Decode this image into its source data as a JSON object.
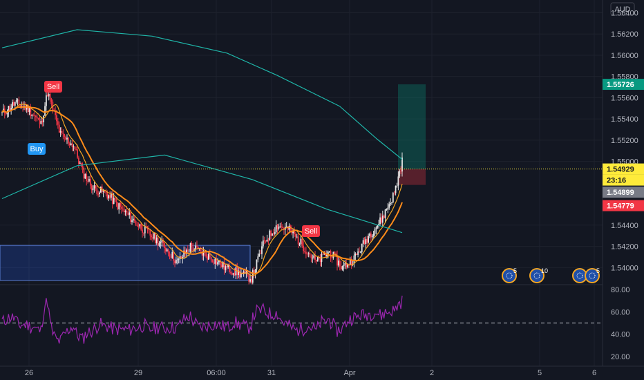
{
  "currency": "AUD",
  "colors": {
    "background": "#131722",
    "grid": "#1e222d",
    "up": "#e6e6e6",
    "down": "#f23645",
    "ma_fast": "#f5a623",
    "ma_slow": "#ff8c1a",
    "ma_long": "#1fb5a8",
    "rsi": "#9c27b0",
    "box": "#2962ff",
    "target": "#089981",
    "stop": "#f23645",
    "current": "#ffeb3b",
    "buy": "#2196f3",
    "sell": "#f23645"
  },
  "price_axis": {
    "ticks": [
      "1.56400",
      "1.56200",
      "1.56000",
      "1.55800",
      "1.55600",
      "1.55400",
      "1.55200",
      "1.55000",
      "1.54400",
      "1.54200",
      "1.54000"
    ],
    "tags": [
      {
        "name": "target",
        "text": "1.55726"
      },
      {
        "name": "current",
        "text": "1.54929"
      },
      {
        "name": "countdown",
        "text": "23:16"
      },
      {
        "name": "prev",
        "text": "1.54899"
      },
      {
        "name": "stop",
        "text": "1.54779"
      }
    ]
  },
  "rsi_axis": {
    "ticks": [
      "80.00",
      "60.00",
      "40.00",
      "20.00"
    ]
  },
  "time_axis": {
    "labels": [
      "26",
      "29",
      "06:00",
      "31",
      "Apr",
      "2",
      "5",
      "6"
    ]
  },
  "signals": [
    {
      "text": "Sell",
      "type": "sell"
    },
    {
      "text": "Buy",
      "type": "buy"
    },
    {
      "text": "Sell",
      "type": "sell"
    }
  ],
  "events": [
    {
      "count": "5"
    },
    {
      "count": "10"
    },
    {
      "count": ""
    },
    {
      "count": "5"
    }
  ],
  "chart_data": {
    "type": "candlestick",
    "symbol_currency": "AUD",
    "ylim": [
      1.5384,
      1.5652
    ],
    "y_ticks": [
      1.564,
      1.562,
      1.56,
      1.558,
      1.556,
      1.554,
      1.552,
      1.55,
      1.544,
      1.542,
      1.54
    ],
    "current_price": 1.54929,
    "previous_close": 1.54899,
    "position": {
      "entry": 1.54929,
      "target": 1.55726,
      "stop": 1.54779
    },
    "support_zone": [
      1.5388,
      1.5421
    ],
    "rsi": {
      "levels": [
        80,
        60,
        40,
        20
      ],
      "dashed_level": 50
    },
    "anchors": [
      [
        0,
        1.5545
      ],
      [
        10,
        1.5555
      ],
      [
        20,
        1.555
      ],
      [
        30,
        1.5535
      ],
      [
        35,
        1.5565
      ],
      [
        45,
        1.5525
      ],
      [
        55,
        1.5515
      ],
      [
        62,
        1.549
      ],
      [
        70,
        1.5475
      ],
      [
        80,
        1.547
      ],
      [
        92,
        1.5455
      ],
      [
        105,
        1.544
      ],
      [
        115,
        1.543
      ],
      [
        125,
        1.542
      ],
      [
        135,
        1.5405
      ],
      [
        145,
        1.542
      ],
      [
        160,
        1.541
      ],
      [
        172,
        1.54
      ],
      [
        182,
        1.5395
      ],
      [
        192,
        1.539
      ],
      [
        202,
        1.5425
      ],
      [
        212,
        1.544
      ],
      [
        222,
        1.5435
      ],
      [
        232,
        1.542
      ],
      [
        242,
        1.5405
      ],
      [
        252,
        1.5415
      ],
      [
        262,
        1.54
      ],
      [
        272,
        1.541
      ],
      [
        282,
        1.543
      ],
      [
        292,
        1.5445
      ],
      [
        302,
        1.547
      ],
      [
        308,
        1.55
      ]
    ]
  }
}
